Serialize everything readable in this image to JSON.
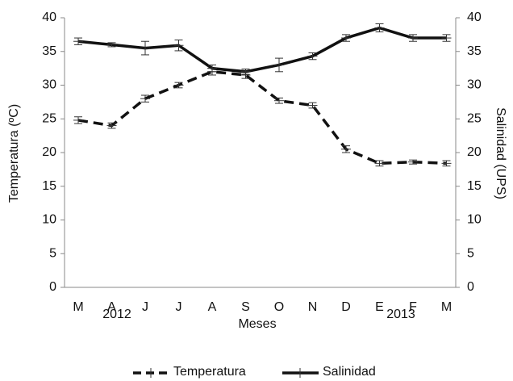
{
  "chart_data": {
    "type": "line",
    "categories": [
      "M",
      "A",
      "J",
      "J",
      "A",
      "S",
      "O",
      "N",
      "D",
      "E",
      "F",
      "M"
    ],
    "year_labels": [
      "2012",
      "2013"
    ],
    "xlabel": "Meses",
    "ylabel": "Temperatura (ºC)",
    "y2label": "Salinidad (UPS)",
    "ylim": [
      0,
      40
    ],
    "yticks": [
      0,
      5,
      10,
      15,
      20,
      25,
      30,
      35,
      40
    ],
    "y2lim": [
      0,
      40
    ],
    "y2ticks": [
      0,
      5,
      10,
      15,
      20,
      25,
      30,
      35,
      40
    ],
    "series": [
      {
        "name": "Temperatura",
        "color": "#111111",
        "dash": true,
        "values": [
          24.8,
          24,
          28,
          30,
          32,
          31.5,
          27.7,
          27,
          20.5,
          18.4,
          18.6,
          18.4
        ],
        "errors": [
          0.5,
          0.4,
          0.5,
          0.4,
          0.5,
          0.5,
          0.4,
          0.4,
          0.5,
          0.4,
          0.3,
          0.4
        ]
      },
      {
        "name": "Salinidad",
        "color": "#111111",
        "dash": false,
        "axis": "y2",
        "values": [
          36.5,
          36,
          35.5,
          35.9,
          32.5,
          32,
          33,
          34.3,
          37,
          38.5,
          37,
          37
        ],
        "errors": [
          0.5,
          0.3,
          1,
          0.8,
          0.5,
          0.4,
          1,
          0.5,
          0.5,
          0.6,
          0.5,
          0.5
        ]
      }
    ],
    "legend": "bottom"
  }
}
